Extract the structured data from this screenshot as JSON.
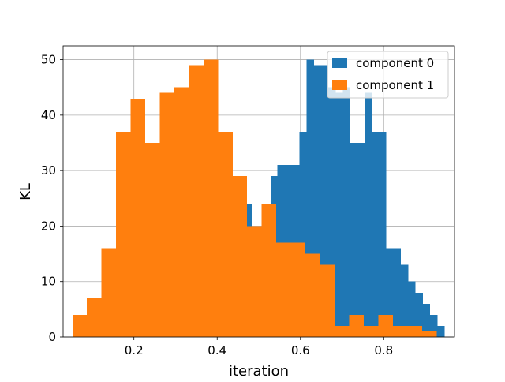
{
  "chart_data": {
    "type": "histogram",
    "xlabel": "iteration",
    "ylabel": "KL",
    "xlim": [
      0.03,
      0.97
    ],
    "ylim": [
      0,
      52.5
    ],
    "grid": true,
    "legend_position": "top-right",
    "x_ticks": [
      0.2,
      0.4,
      0.6,
      0.8
    ],
    "x_tick_labels": [
      "0.2",
      "0.4",
      "0.6",
      "0.8"
    ],
    "y_ticks": [
      0,
      10,
      20,
      30,
      40,
      50
    ],
    "y_tick_labels": [
      "0",
      "10",
      "20",
      "30",
      "40",
      "50"
    ],
    "series": [
      {
        "name": "component 0",
        "color": "#1f77b4",
        "bin_edges": [
          0.44,
          0.4535,
          0.4685,
          0.4835,
          0.4985,
          0.514,
          0.53,
          0.545,
          0.5625,
          0.58,
          0.5975,
          0.615,
          0.6325,
          0.6495,
          0.667,
          0.6845,
          0.702,
          0.7195,
          0.737,
          0.754,
          0.7715,
          0.789,
          0.8065,
          0.824,
          0.8415,
          0.859,
          0.8765,
          0.894,
          0.9115,
          0.929,
          0.946
        ],
        "counts": [
          20,
          20,
          24,
          20,
          20,
          20,
          29,
          31,
          31,
          31,
          37,
          50,
          49,
          49,
          45,
          44,
          45,
          35,
          35,
          44,
          37,
          37,
          16,
          16,
          13,
          10,
          8,
          6,
          4,
          2
        ]
      },
      {
        "name": "component 1",
        "color": "#ff7f0e",
        "bin_edges": [
          0.0535,
          0.087,
          0.122,
          0.157,
          0.192,
          0.227,
          0.262,
          0.297,
          0.332,
          0.367,
          0.402,
          0.437,
          0.472,
          0.507,
          0.542,
          0.577,
          0.612,
          0.647,
          0.682,
          0.717,
          0.752,
          0.787,
          0.822,
          0.857,
          0.892,
          0.927
        ],
        "counts": [
          4,
          7,
          16,
          37,
          43,
          35,
          44,
          45,
          49,
          50,
          37,
          29,
          20,
          24,
          17,
          17,
          15,
          13,
          2,
          4,
          2,
          4,
          2,
          2,
          1
        ]
      }
    ]
  }
}
